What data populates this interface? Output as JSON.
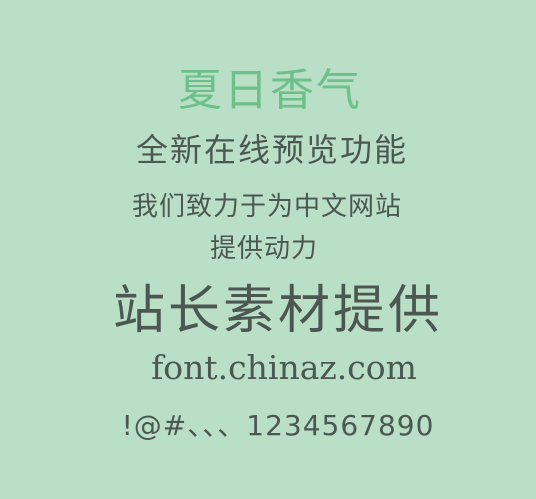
{
  "preview": {
    "title": "夏日香气",
    "subtitle": "全新在线预览功能",
    "line3": "我们致力于为中文网站",
    "line4": "提供动力",
    "line5": "站长素材提供",
    "line6": "font.chinaz.com",
    "line7": "!@#、、、1234567890"
  },
  "colors": {
    "background": "#b9dfc6",
    "title": "#6dc08a",
    "text": "#4d5752"
  }
}
